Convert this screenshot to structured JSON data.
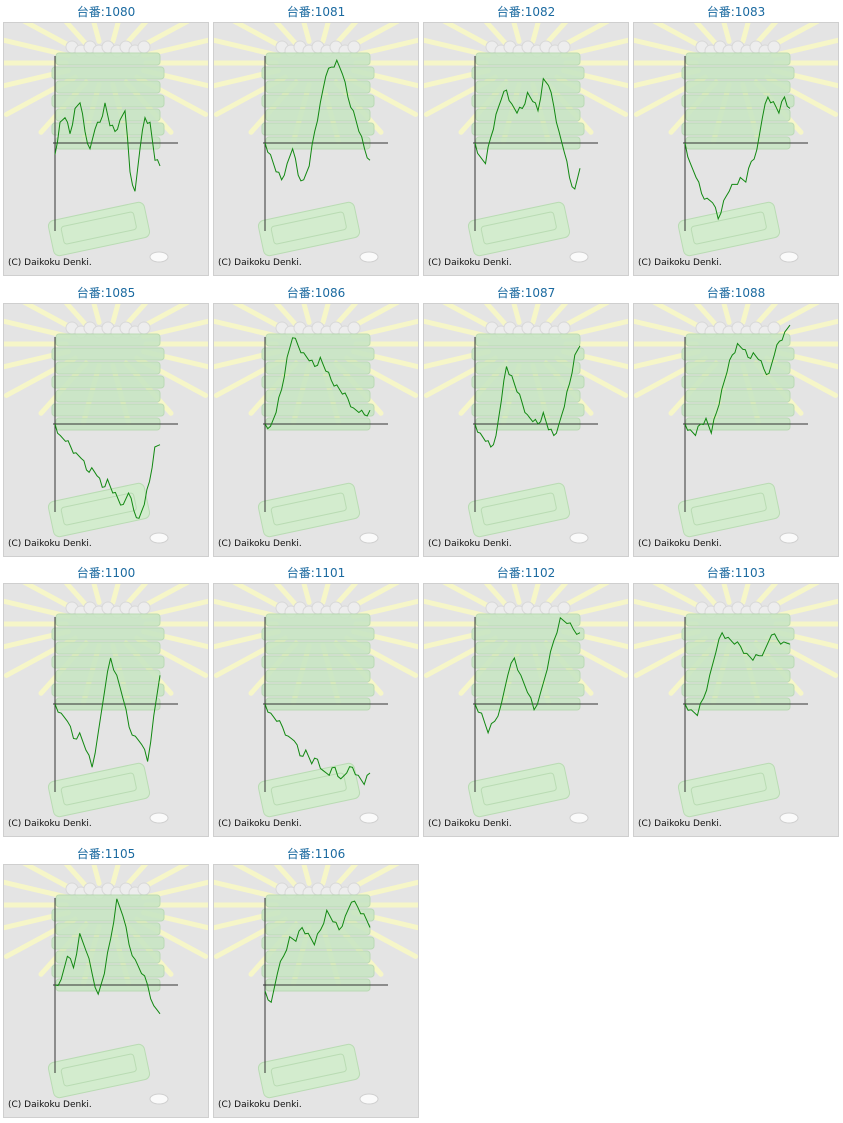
{
  "copyright": "(C) Daikoku Denki.",
  "colors": {
    "title": "#1b6aa0",
    "line": "#118811",
    "axis": "#333333",
    "panel": "#e4e4e4"
  },
  "chart_data": [
    {
      "type": "line",
      "title": "台番:1080",
      "values": [
        -10,
        18,
        22,
        8,
        30,
        35,
        10,
        -5,
        12,
        18,
        35,
        15,
        10,
        20,
        28,
        -25,
        -42,
        -5,
        22,
        18,
        -15,
        -20
      ]
    },
    {
      "type": "line",
      "title": "台番:1081",
      "values": [
        0,
        -10,
        -25,
        -32,
        -18,
        -5,
        -28,
        -32,
        -20,
        10,
        35,
        58,
        66,
        72,
        60,
        40,
        28,
        10,
        -5,
        -15
      ]
    },
    {
      "type": "line",
      "title": "台番:1082",
      "values": [
        0,
        -12,
        -18,
        5,
        25,
        38,
        46,
        34,
        26,
        30,
        44,
        36,
        28,
        56,
        50,
        32,
        10,
        -8,
        -30,
        -40,
        -22
      ]
    },
    {
      "type": "line",
      "title": "台番:1083",
      "values": [
        0,
        -18,
        -30,
        -44,
        -48,
        -52,
        -66,
        -50,
        -42,
        -36,
        -30,
        -34,
        -16,
        -6,
        22,
        40,
        36,
        26,
        40,
        30
      ]
    },
    {
      "type": "line",
      "title": "台番:1085",
      "values": [
        0,
        -10,
        -15,
        -20,
        -25,
        -30,
        -40,
        -38,
        -45,
        -55,
        -48,
        -60,
        -65,
        -70,
        -60,
        -75,
        -82,
        -70,
        -50,
        -20,
        -18
      ]
    },
    {
      "type": "line",
      "title": "台番:1086",
      "values": [
        0,
        -2,
        10,
        30,
        58,
        75,
        68,
        62,
        55,
        50,
        58,
        46,
        38,
        34,
        26,
        22,
        14,
        10,
        8,
        12
      ]
    },
    {
      "type": "line",
      "title": "台番:1087",
      "values": [
        0,
        -8,
        -15,
        -20,
        -10,
        20,
        50,
        42,
        28,
        18,
        8,
        2,
        0,
        10,
        -5,
        -10,
        0,
        15,
        35,
        60,
        68
      ]
    },
    {
      "type": "line",
      "title": "台番:1088",
      "values": [
        0,
        -5,
        -10,
        0,
        5,
        -8,
        10,
        30,
        45,
        60,
        70,
        65,
        58,
        62,
        56,
        48,
        44,
        60,
        72,
        80,
        86
      ]
    },
    {
      "type": "line",
      "title": "台番:1100",
      "values": [
        0,
        -8,
        -15,
        -30,
        -25,
        -40,
        -55,
        -25,
        10,
        40,
        25,
        5,
        -20,
        -28,
        -35,
        -50,
        -10,
        25
      ]
    },
    {
      "type": "line",
      "title": "台番:1101",
      "values": [
        0,
        -8,
        -15,
        -20,
        -28,
        -32,
        -45,
        -40,
        -52,
        -48,
        -58,
        -62,
        -55,
        -65,
        -60,
        -55,
        -62,
        -70,
        -60
      ]
    },
    {
      "type": "line",
      "title": "台番:1102",
      "values": [
        0,
        -8,
        -25,
        -15,
        0,
        25,
        40,
        25,
        10,
        -5,
        10,
        30,
        55,
        75,
        70,
        65,
        62
      ]
    },
    {
      "type": "line",
      "title": "台番:1103",
      "values": [
        0,
        -5,
        -10,
        5,
        25,
        45,
        62,
        58,
        52,
        50,
        44,
        38,
        42,
        48,
        60,
        56,
        54,
        52
      ]
    },
    {
      "type": "line",
      "title": "台番:1105",
      "values": [
        0,
        5,
        25,
        15,
        45,
        30,
        10,
        -8,
        10,
        40,
        75,
        60,
        35,
        22,
        10,
        0,
        -18,
        -25
      ]
    },
    {
      "type": "line",
      "title": "台番:1106",
      "values": [
        -5,
        -15,
        10,
        25,
        42,
        38,
        50,
        45,
        35,
        48,
        65,
        55,
        48,
        60,
        72,
        68,
        62,
        50
      ]
    }
  ]
}
